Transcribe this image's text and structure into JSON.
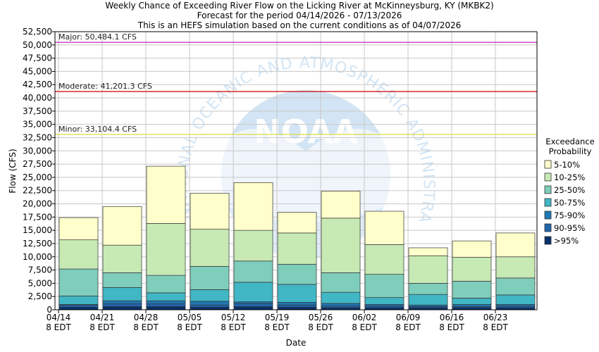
{
  "chart_data": {
    "type": "bar",
    "stacked": true,
    "title": "Weekly Chance of Exceeding River Flow on the Licking River at McKinneysburg, KY (MKBK2)",
    "subtitle1": "Forecast for the period 04/14/2026 - 07/13/2026",
    "subtitle2": "This is an HEFS simulation based on the current conditions as of 04/07/2026",
    "xlabel": "Date",
    "ylabel": "Flow (CFS)",
    "ylim": [
      0,
      52500
    ],
    "yticks": [
      0,
      2500,
      5000,
      7500,
      10000,
      12500,
      15000,
      17500,
      20000,
      22500,
      25000,
      27500,
      30000,
      32500,
      35000,
      37500,
      40000,
      42500,
      45000,
      47500,
      50000,
      52500
    ],
    "ytick_labels": [
      "0",
      "2,500",
      "5,000",
      "7,500",
      "10,000",
      "12,500",
      "15,000",
      "17,500",
      "20,000",
      "22,500",
      "25,000",
      "27,500",
      "30,000",
      "32,500",
      "35,000",
      "37,500",
      "40,000",
      "42,500",
      "45,000",
      "47,500",
      "50,000",
      "52,500"
    ],
    "xtick_labels": [
      [
        "04/14",
        "8 EDT"
      ],
      [
        "04/21",
        "8 EDT"
      ],
      [
        "04/28",
        "8 EDT"
      ],
      [
        "05/05",
        "8 EDT"
      ],
      [
        "05/12",
        "8 EDT"
      ],
      [
        "05/19",
        "8 EDT"
      ],
      [
        "05/26",
        "8 EDT"
      ],
      [
        "06/02",
        "8 EDT"
      ],
      [
        "06/09",
        "8 EDT"
      ],
      [
        "06/16",
        "8 EDT"
      ],
      [
        "06/23",
        "8 EDT"
      ]
    ],
    "grid": true,
    "legend_title": "Exceedance Probability",
    "legend_title_lines": [
      "Exceedance",
      "Probability"
    ],
    "legend_position": "right",
    "series": [
      {
        "name": ">95%",
        "color": "#08306b",
        "top": [
          500,
          600,
          600,
          500,
          600,
          500,
          400,
          400,
          400,
          400,
          400
        ]
      },
      {
        "name": "90-95%",
        "color": "#2166ac",
        "top": [
          900,
          1100,
          1100,
          900,
          1200,
          900,
          700,
          700,
          600,
          600,
          700
        ]
      },
      {
        "name": "75-90%",
        "color": "#1f78b4",
        "top": [
          1000,
          1700,
          1700,
          1600,
          1500,
          1400,
          1200,
          1000,
          900,
          1000,
          1000
        ]
      },
      {
        "name": "50-75%",
        "color": "#41b6c4",
        "top": [
          2600,
          4200,
          3200,
          3800,
          5200,
          4800,
          3300,
          2300,
          2900,
          2200,
          2800
        ]
      },
      {
        "name": "25-50%",
        "color": "#7fcdbb",
        "top": [
          7700,
          7000,
          6500,
          8200,
          9200,
          8600,
          7000,
          6700,
          5000,
          5400,
          6000
        ]
      },
      {
        "name": "10-25%",
        "color": "#c7e9b4",
        "top": [
          13200,
          12200,
          16300,
          15200,
          15000,
          14500,
          17300,
          12300,
          10200,
          9900,
          10000
        ]
      },
      {
        "name": "5-10%",
        "color": "#ffffcc",
        "top": [
          17400,
          19500,
          27100,
          22000,
          24000,
          18400,
          22400,
          18600,
          11700,
          13000,
          14500
        ]
      }
    ],
    "legend_order": [
      "5-10%",
      "10-25%",
      "25-50%",
      "50-75%",
      "75-90%",
      "90-95%",
      ">95%"
    ],
    "thresholds": [
      {
        "label": "Major: 50,484.1 CFS",
        "value": 50484.1,
        "color": "#cc33cc"
      },
      {
        "label": "Moderate: 41,201.3 CFS",
        "value": 41201.3,
        "color": "#cc0000"
      },
      {
        "label": "Minor: 33,104.4 CFS",
        "value": 33104.4,
        "color": "#dddd55"
      }
    ]
  },
  "watermark": {
    "arc_text": "NATIONAL OCEANIC AND ATMOSPHERIC ADMINISTRATION",
    "logo_text": "NOAA",
    "color": "#cfe3f3"
  }
}
